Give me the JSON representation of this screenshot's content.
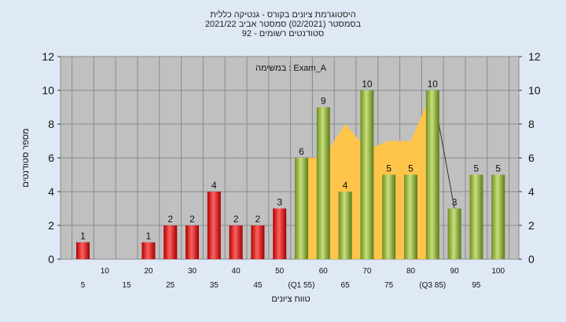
{
  "chart_data": {
    "type": "bar",
    "title_lines": [
      "היסטוגרמת ציונים בקורס - גנטיקה כללית",
      "בסמסטר  (02/2021)  סמסטר אביב 2021/22",
      "סטודנטים רשומים - 92"
    ],
    "annotation": "במשימה : Exam_A",
    "xlabel": "טווח ציונים",
    "ylabel": "מספר סטודנטים",
    "ylim": [
      0,
      12
    ],
    "yticks": [
      0,
      2,
      4,
      6,
      8,
      10,
      12
    ],
    "grid": true,
    "categories": [
      "5",
      "10",
      "15",
      "20",
      "25",
      "30",
      "35",
      "40",
      "45",
      "50",
      "55",
      "60",
      "65",
      "70",
      "75",
      "80",
      "85",
      "90",
      "95",
      "100"
    ],
    "x_tick_labels": [
      "5",
      "10",
      "15",
      "20",
      "25",
      "30",
      "35",
      "40",
      "45",
      "50",
      "(Q1 55)",
      "60",
      "65",
      "70",
      "75",
      "80",
      "(Q3 85)",
      "90",
      "95",
      "100"
    ],
    "values": [
      1,
      0,
      0,
      1,
      2,
      2,
      4,
      2,
      2,
      3,
      6,
      9,
      4,
      10,
      5,
      5,
      10,
      3,
      5,
      5
    ],
    "value_labels": [
      "1",
      "",
      "",
      "1",
      "2",
      "2",
      "4",
      "2",
      "2",
      "3",
      "6",
      "9",
      "4",
      "10",
      "5",
      "5",
      "10",
      "3",
      "5",
      "5"
    ],
    "bar_colors": [
      "red",
      "red",
      "red",
      "red",
      "red",
      "red",
      "red",
      "red",
      "red",
      "red",
      "green",
      "green",
      "green",
      "green",
      "green",
      "green",
      "green",
      "green",
      "green",
      "green"
    ],
    "interquartile_area": [
      {
        "x": "55",
        "y": 6
      },
      {
        "x": "60",
        "y": 6
      },
      {
        "x": "65",
        "y": 8
      },
      {
        "x": "70",
        "y": 6.5
      },
      {
        "x": "75",
        "y": 7
      },
      {
        "x": "80",
        "y": 7
      },
      {
        "x": "85",
        "y": 10
      }
    ],
    "colors": {
      "plot_bg": "#c0c0c0",
      "page_bg": "#dfe9f5",
      "red_bar": "#e02020",
      "green_bar": "#90b030",
      "area": "#ffc44a"
    }
  }
}
